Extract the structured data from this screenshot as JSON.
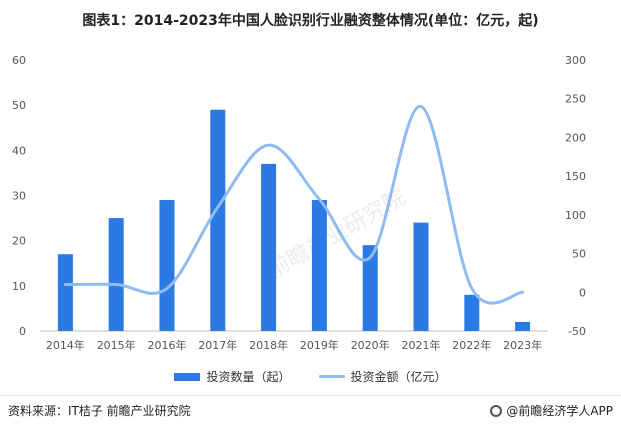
{
  "title": "图表1：2014-2023年中国人脸识别行业融资整体情况(单位：亿元，起)",
  "footer": {
    "source": "资料来源：IT桔子 前瞻产业研究院",
    "brand": "@前瞻经济学人APP"
  },
  "watermark": "前瞻产业研究院",
  "colors": {
    "bar": "#2b7ae4",
    "line": "#8fbcf0",
    "grid": "#e6e6e6"
  },
  "chart_data": {
    "type": "bar",
    "categories": [
      "2014年",
      "2015年",
      "2016年",
      "2017年",
      "2018年",
      "2019年",
      "2020年",
      "2021年",
      "2022年",
      "2023年"
    ],
    "series": [
      {
        "name": "投资数量（起）",
        "type": "bar",
        "axis": "left",
        "values": [
          17,
          25,
          29,
          49,
          37,
          29,
          19,
          24,
          8,
          2
        ]
      },
      {
        "name": "投资金额（亿元）",
        "type": "line",
        "axis": "right",
        "values": [
          10,
          10,
          5,
          110,
          190,
          120,
          45,
          240,
          5,
          0
        ]
      }
    ],
    "ylim_left": [
      0,
      60
    ],
    "yticks_left": [
      "0",
      "10",
      "20",
      "30",
      "40",
      "50",
      "60"
    ],
    "ylim_right": [
      -50,
      300
    ],
    "yticks_right": [
      "-50",
      "0",
      "50",
      "100",
      "150",
      "200",
      "250",
      "300"
    ],
    "grid": false,
    "legend_position": "bottom"
  }
}
